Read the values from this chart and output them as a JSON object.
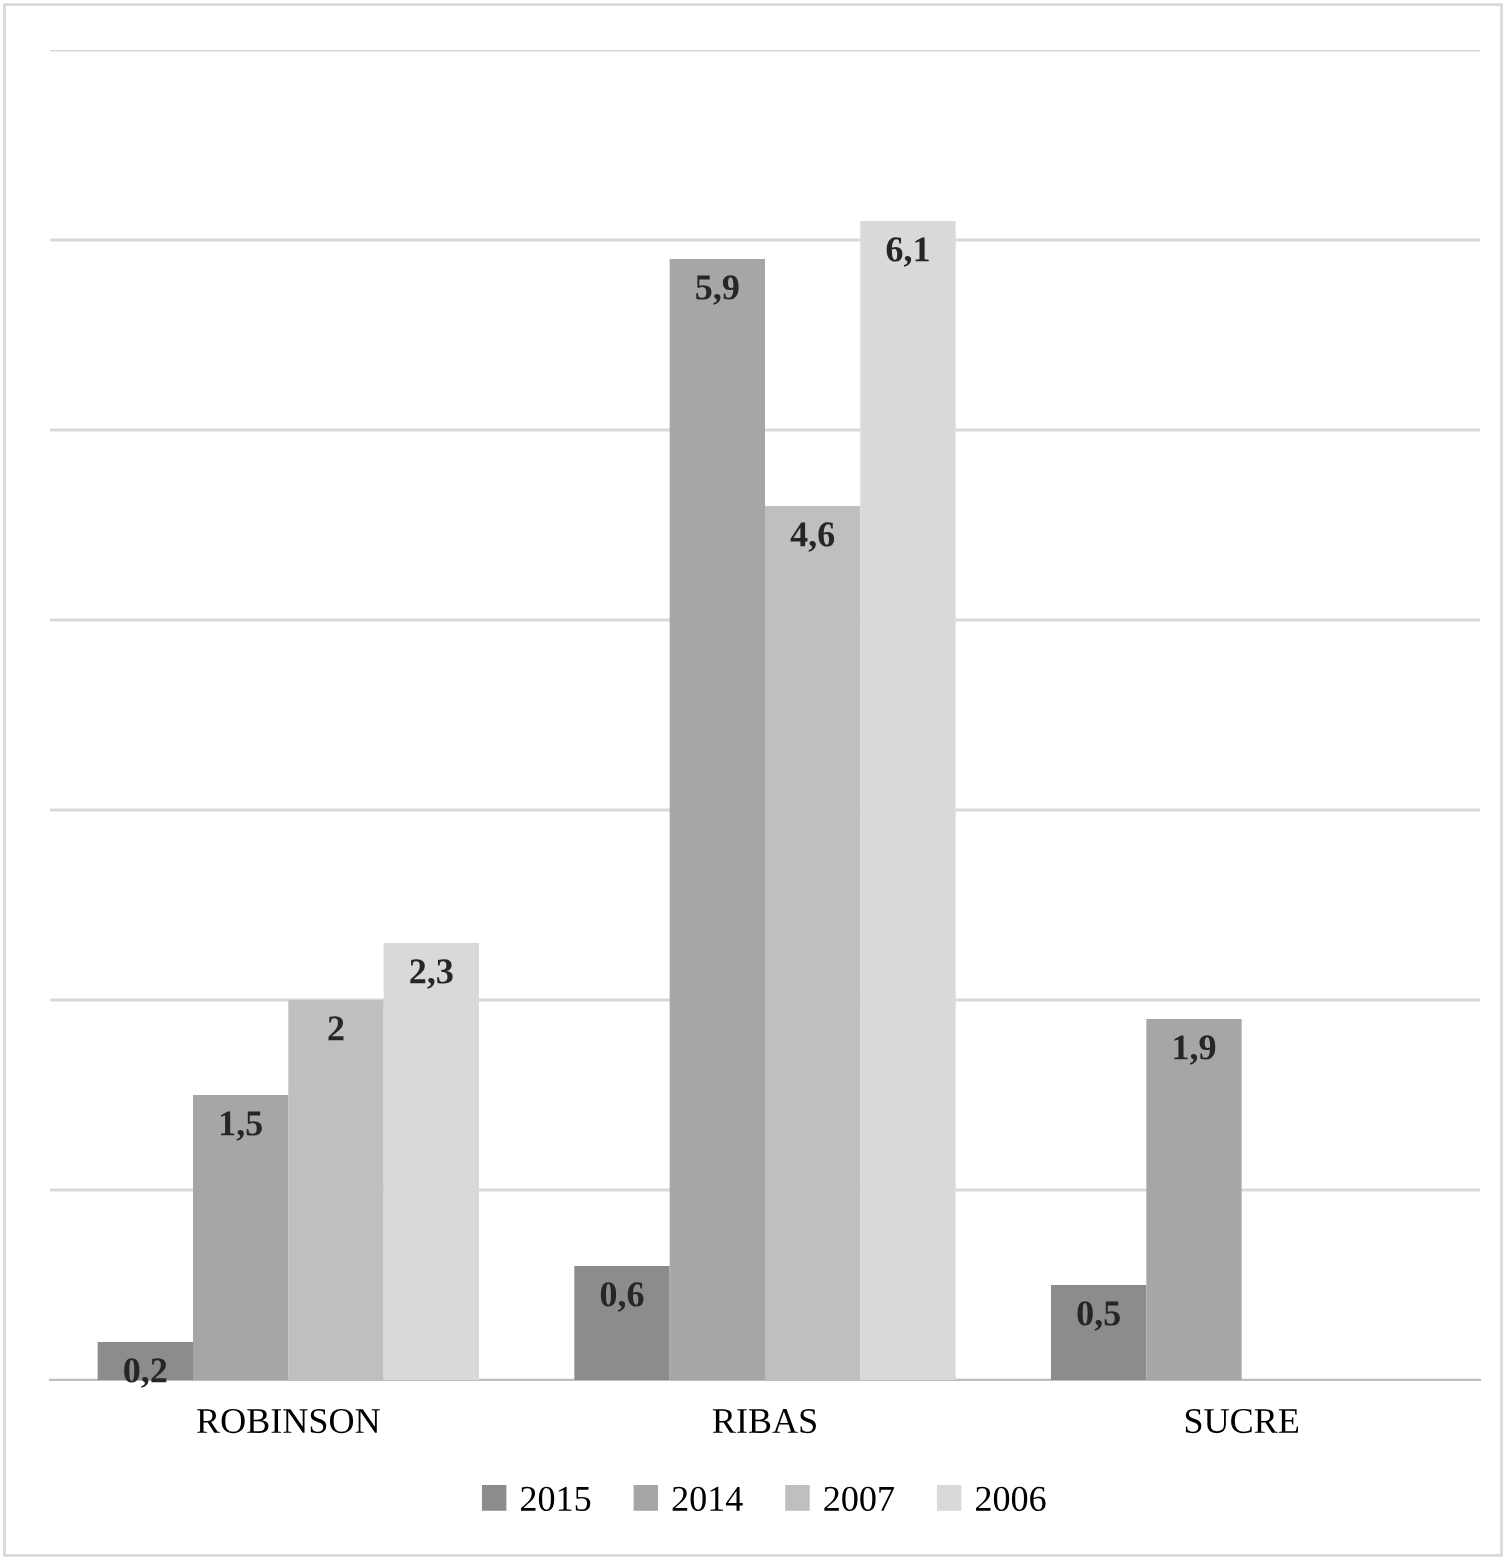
{
  "chart_data": {
    "type": "bar",
    "categories": [
      "ROBINSON",
      "RIBAS",
      "SUCRE"
    ],
    "series": [
      {
        "name": "2015",
        "color": "#8c8c8c",
        "values": [
          0.2,
          0.6,
          0.5
        ],
        "value_labels": [
          "0,2",
          "0,6",
          "0,5"
        ]
      },
      {
        "name": "2014",
        "color": "#a6a6a6",
        "values": [
          1.5,
          5.9,
          1.9
        ],
        "value_labels": [
          "1,5",
          "5,9",
          "1,9"
        ]
      },
      {
        "name": "2007",
        "color": "#bfbfbf",
        "values": [
          2,
          4.6,
          null
        ],
        "value_labels": [
          "2",
          "4,6",
          null
        ]
      },
      {
        "name": "2006",
        "color": "#d9d9d9",
        "values": [
          2.3,
          6.1,
          null
        ],
        "value_labels": [
          "2,3",
          "6,1",
          null
        ]
      }
    ],
    "ylim": [
      0,
      7
    ],
    "yticks": [
      {
        "value": 0,
        "label": null
      },
      {
        "value": 1,
        "label": null
      },
      {
        "value": 2,
        "label": null
      },
      {
        "value": 3,
        "label": null
      },
      {
        "value": 4,
        "label": null
      },
      {
        "value": 5,
        "label": null
      },
      {
        "value": 6,
        "label": null
      },
      {
        "value": 7,
        "label": null
      }
    ],
    "tick_labels": "x",
    "grid": "y",
    "legend": "bottom"
  }
}
